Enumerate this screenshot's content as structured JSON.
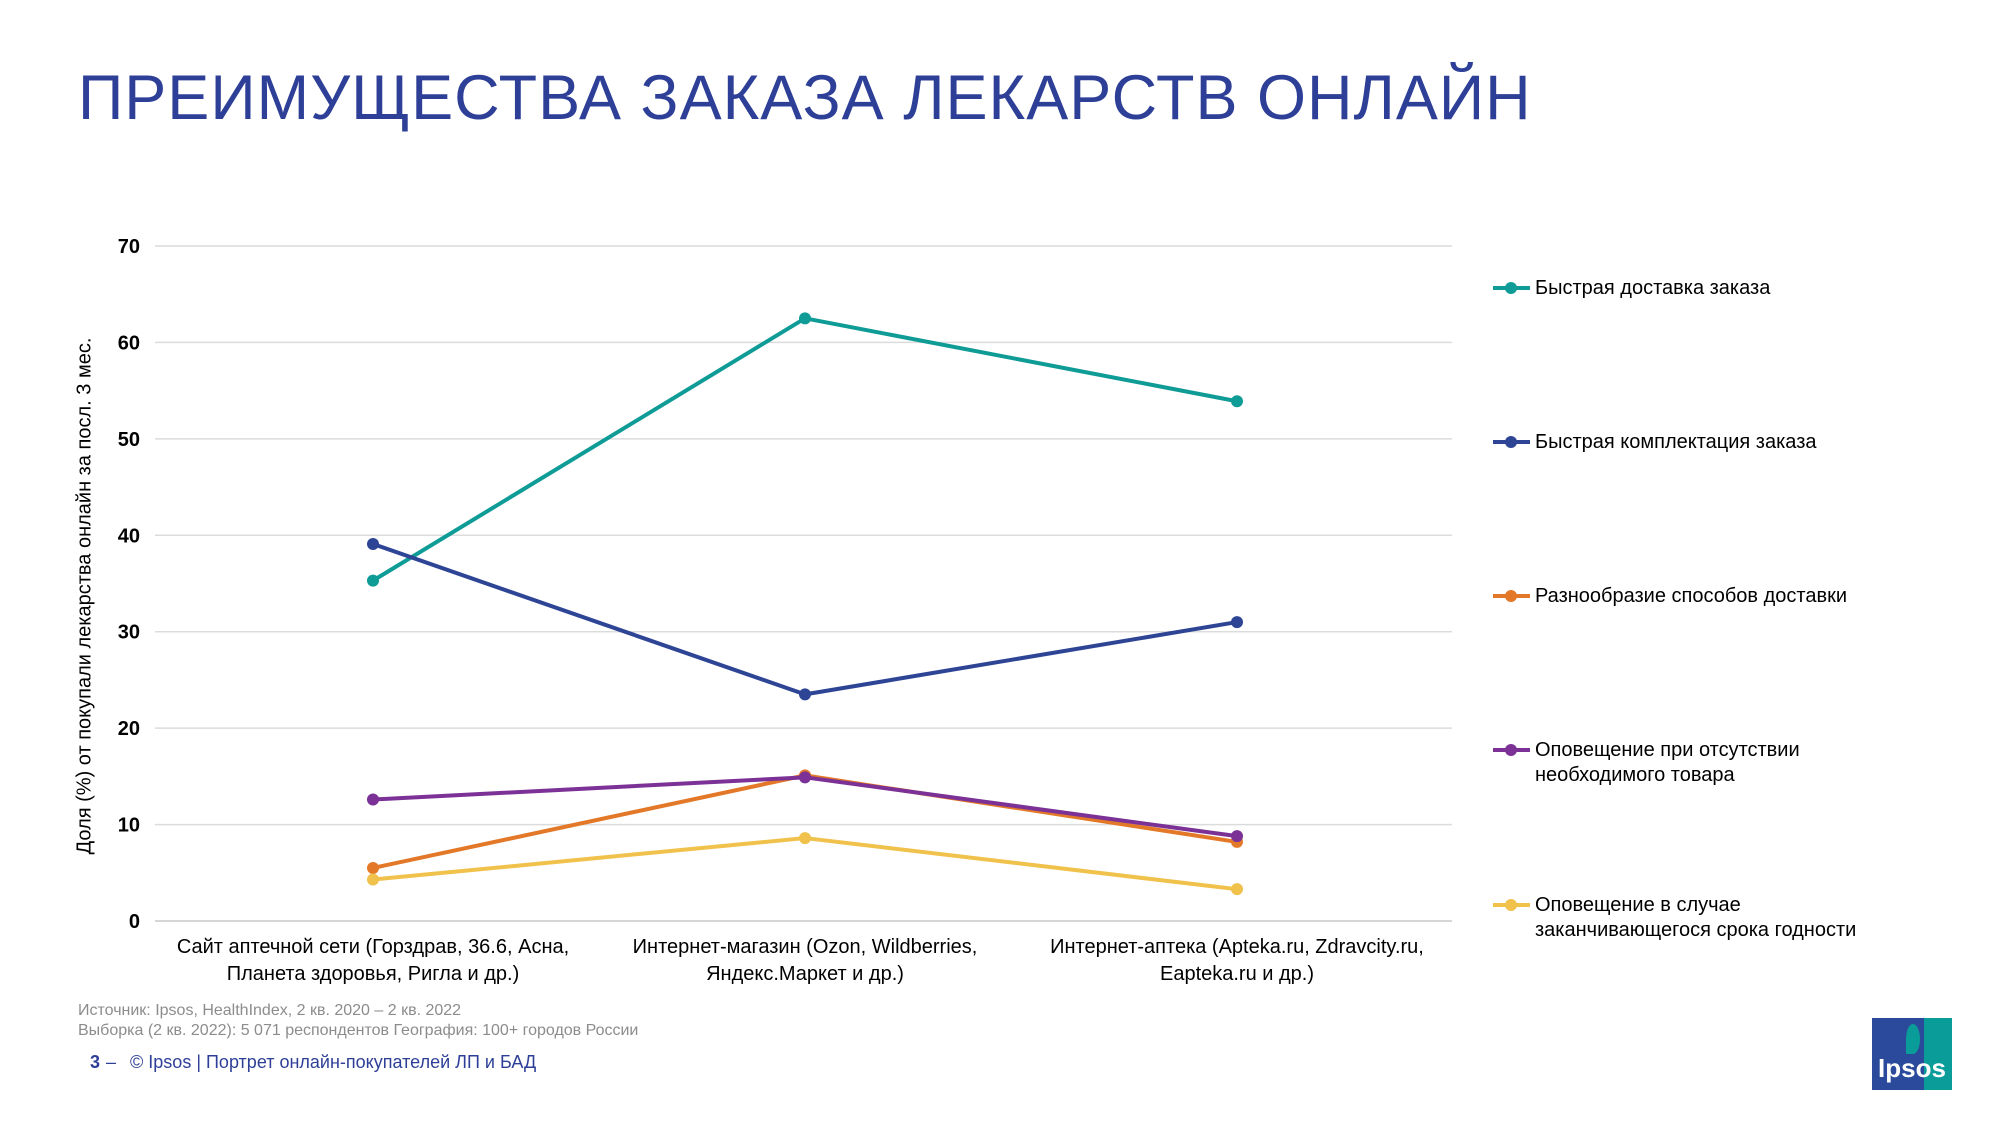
{
  "title": "ПРЕИМУЩЕСТВА ЗАКАЗА ЛЕКАРСТВ ОНЛАЙН",
  "chart_data": {
    "type": "line",
    "ylabel": "Доля (%) от покупали лекарства онлайн за посл. 3 мес.",
    "ylim": [
      0,
      70
    ],
    "yticks": [
      0,
      10,
      20,
      30,
      40,
      50,
      60,
      70
    ],
    "grid": true,
    "legend_position": "right",
    "categories": [
      [
        "Сайт аптечной сети (Горздрав, 36.6, Асна,",
        "Планета здоровья, Ригла и др.)"
      ],
      [
        "Интернет-магазин (Ozon, Wildberries,",
        "Яндекс.Маркет и др.)"
      ],
      [
        "Интернет-аптека (Apteka.ru, Zdravcity.ru,",
        "Eapteka.ru и др.)"
      ]
    ],
    "series": [
      {
        "name": [
          "Быстрая доставка заказа"
        ],
        "color": "#0f9b96",
        "values": [
          35.3,
          62.5,
          53.9
        ]
      },
      {
        "name": [
          "Быстрая комплектация заказа"
        ],
        "color": "#2e4596",
        "values": [
          39.1,
          23.5,
          31.0
        ]
      },
      {
        "name": [
          "Разнообразие способов доставки"
        ],
        "color": "#e27828",
        "values": [
          5.5,
          15.1,
          8.2
        ]
      },
      {
        "name": [
          "Оповещение при отсутствии",
          "необходимого товара"
        ],
        "color": "#7b3195",
        "values": [
          12.6,
          14.9,
          8.8
        ]
      },
      {
        "name": [
          "Оповещение в случае",
          "заканчивающегося срока годности"
        ],
        "color": "#f0c14b",
        "values": [
          4.3,
          8.6,
          3.3
        ]
      }
    ]
  },
  "source": {
    "line1": "Источник: Ipsos, HealthIndex, 2 кв. 2020 – 2 кв. 2022",
    "line2": "Выборка (2 кв. 2022): 5 071 респондентов  География: 100+ городов России"
  },
  "footer": {
    "page": "3",
    "dash": "–",
    "text": "© Ipsos | Портрет онлайн-покупателей ЛП и БАД"
  },
  "logo": {
    "text": "Ipsos"
  }
}
